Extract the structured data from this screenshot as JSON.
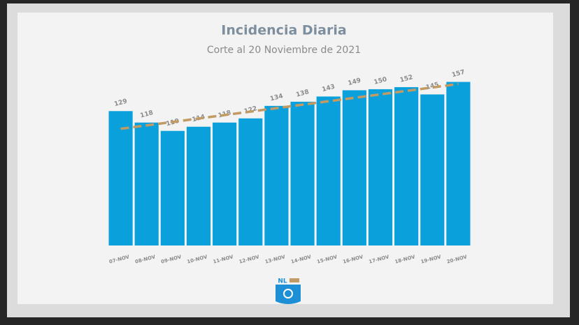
{
  "chart_data": {
    "type": "bar",
    "title": "Incidencia Diaria",
    "subtitle": "Corte al 20 Noviembre de 2021",
    "categories": [
      "07-NOV",
      "08-NOV",
      "09-NOV",
      "10-NOV",
      "11-NOV",
      "12-NOV",
      "13-NOV",
      "14-NOV",
      "15-NOV",
      "16-NOV",
      "17-NOV",
      "18-NOV",
      "19-NOV",
      "20-NOV"
    ],
    "values": [
      129,
      118,
      110,
      114,
      118,
      122,
      134,
      138,
      143,
      149,
      150,
      152,
      145,
      157
    ],
    "color": "#0aa0dc",
    "trend": [
      112,
      155
    ],
    "trend_color": "#c29a63",
    "ylim": [
      0,
      160
    ]
  },
  "logo_text": "NL"
}
